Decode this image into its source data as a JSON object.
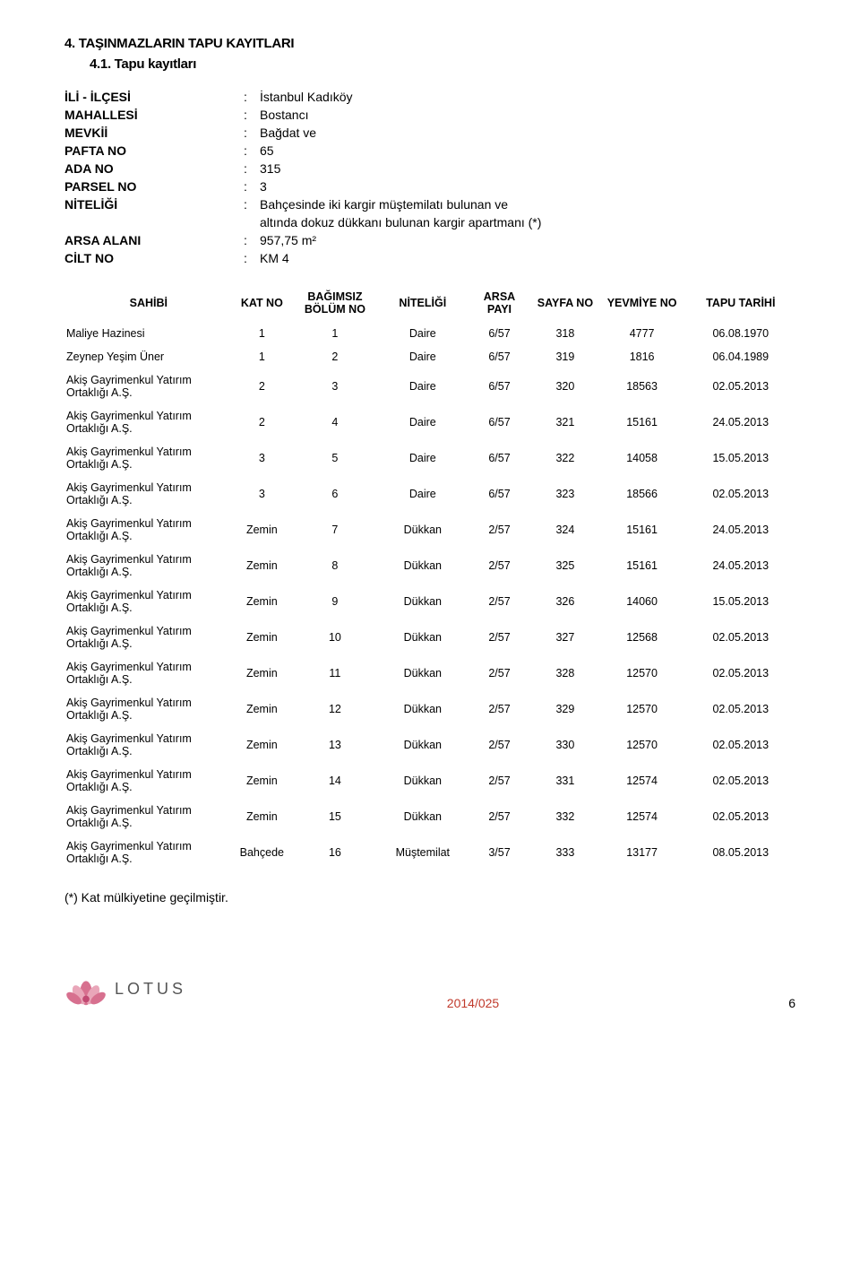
{
  "headings": {
    "sec4": "4.  TAŞINMAZLARIN TAPU KAYITLARI",
    "sec41": "4.1.  Tapu kayıtları"
  },
  "meta": {
    "rows": [
      {
        "label": "İLİ - İLÇESİ",
        "value": "İstanbul Kadıköy"
      },
      {
        "label": "MAHALLESİ",
        "value": "Bostancı"
      },
      {
        "label": "MEVKİİ",
        "value": "Bağdat ve"
      },
      {
        "label": "PAFTA NO",
        "value": "65"
      },
      {
        "label": "ADA NO",
        "value": "315"
      },
      {
        "label": "PARSEL NO",
        "value": "3"
      },
      {
        "label": "NİTELİĞİ",
        "value": "Bahçesinde iki kargir müştemilatı bulunan ve",
        "cont": "altında dokuz dükkanı bulunan kargir apartmanı (*)"
      },
      {
        "label": "ARSA ALANI",
        "value": "957,75 m²"
      },
      {
        "label": "CİLT NO",
        "value": "KM 4"
      }
    ]
  },
  "table": {
    "colWidths": [
      "23%",
      "8%",
      "12%",
      "12%",
      "9%",
      "9%",
      "12%",
      "15%"
    ],
    "headers": [
      "SAHİBİ",
      "KAT NO",
      "BAĞIMSIZ BÖLÜM NO",
      "NİTELİĞİ",
      "ARSA PAYI",
      "SAYFA NO",
      "YEVMİYE NO",
      "TAPU TARİHİ"
    ],
    "rows": [
      [
        "Maliye Hazinesi",
        "1",
        "1",
        "Daire",
        "6/57",
        "318",
        "4777",
        "06.08.1970"
      ],
      [
        "Zeynep Yeşim Üner",
        "1",
        "2",
        "Daire",
        "6/57",
        "319",
        "1816",
        "06.04.1989"
      ],
      [
        "Akiş Gayrimenkul Yatırım Ortaklığı A.Ş.",
        "2",
        "3",
        "Daire",
        "6/57",
        "320",
        "18563",
        "02.05.2013"
      ],
      [
        "Akiş Gayrimenkul Yatırım Ortaklığı A.Ş.",
        "2",
        "4",
        "Daire",
        "6/57",
        "321",
        "15161",
        "24.05.2013"
      ],
      [
        "Akiş Gayrimenkul Yatırım Ortaklığı A.Ş.",
        "3",
        "5",
        "Daire",
        "6/57",
        "322",
        "14058",
        "15.05.2013"
      ],
      [
        "Akiş Gayrimenkul Yatırım Ortaklığı A.Ş.",
        "3",
        "6",
        "Daire",
        "6/57",
        "323",
        "18566",
        "02.05.2013"
      ],
      [
        "Akiş Gayrimenkul Yatırım Ortaklığı A.Ş.",
        "Zemin",
        "7",
        "Dükkan",
        "2/57",
        "324",
        "15161",
        "24.05.2013"
      ],
      [
        "Akiş Gayrimenkul Yatırım Ortaklığı A.Ş.",
        "Zemin",
        "8",
        "Dükkan",
        "2/57",
        "325",
        "15161",
        "24.05.2013"
      ],
      [
        "Akiş Gayrimenkul Yatırım Ortaklığı A.Ş.",
        "Zemin",
        "9",
        "Dükkan",
        "2/57",
        "326",
        "14060",
        "15.05.2013"
      ],
      [
        "Akiş Gayrimenkul Yatırım Ortaklığı A.Ş.",
        "Zemin",
        "10",
        "Dükkan",
        "2/57",
        "327",
        "12568",
        "02.05.2013"
      ],
      [
        "Akiş Gayrimenkul Yatırım Ortaklığı A.Ş.",
        "Zemin",
        "11",
        "Dükkan",
        "2/57",
        "328",
        "12570",
        "02.05.2013"
      ],
      [
        "Akiş Gayrimenkul Yatırım Ortaklığı A.Ş.",
        "Zemin",
        "12",
        "Dükkan",
        "2/57",
        "329",
        "12570",
        "02.05.2013"
      ],
      [
        "Akiş Gayrimenkul Yatırım Ortaklığı A.Ş.",
        "Zemin",
        "13",
        "Dükkan",
        "2/57",
        "330",
        "12570",
        "02.05.2013"
      ],
      [
        "Akiş Gayrimenkul Yatırım Ortaklığı A.Ş.",
        "Zemin",
        "14",
        "Dükkan",
        "2/57",
        "331",
        "12574",
        "02.05.2013"
      ],
      [
        "Akiş Gayrimenkul Yatırım Ortaklığı A.Ş.",
        "Zemin",
        "15",
        "Dükkan",
        "2/57",
        "332",
        "12574",
        "02.05.2013"
      ],
      [
        "Akiş Gayrimenkul Yatırım Ortaklığı A.Ş.",
        "Bahçede",
        "16",
        "Müştemilat",
        "3/57",
        "333",
        "13177",
        "08.05.2013"
      ]
    ]
  },
  "footnote": "(*)  Kat mülkiyetine geçilmiştir.",
  "footer": {
    "brand": "LOTUS",
    "docid": "2014/025",
    "page": "6",
    "logoColors": {
      "petal": "#d7708f",
      "petalLight": "#e9a6b9",
      "center": "#c24a73"
    }
  }
}
